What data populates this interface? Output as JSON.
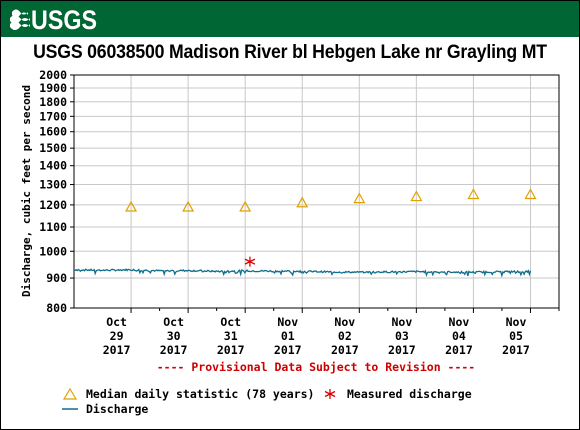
{
  "logo": {
    "text": "USGS"
  },
  "colors": {
    "banner": "#006633",
    "median": "#E0A000",
    "discharge": "#0E6E8C",
    "measured": "#DD0000",
    "provisional": "#CC0000"
  },
  "chart_data": {
    "type": "line",
    "title": "USGS 06038500 Madison River bl Hebgen Lake nr Grayling MT",
    "ylabel": "Discharge, cubic feet per second",
    "ylim": [
      800,
      2000
    ],
    "yscale": "log",
    "yticks": [
      "800",
      "900",
      "1000",
      "1100",
      "1200",
      "1300",
      "1400",
      "1500",
      "1600",
      "1700",
      "1800",
      "1900",
      "2000"
    ],
    "xlim": [
      "2017-10-28",
      "2017-11-05 12:00"
    ],
    "xticks": [
      {
        "month": "Oct",
        "day": "29",
        "year": "2017"
      },
      {
        "month": "Oct",
        "day": "30",
        "year": "2017"
      },
      {
        "month": "Oct",
        "day": "31",
        "year": "2017"
      },
      {
        "month": "Nov",
        "day": "01",
        "year": "2017"
      },
      {
        "month": "Nov",
        "day": "02",
        "year": "2017"
      },
      {
        "month": "Nov",
        "day": "03",
        "year": "2017"
      },
      {
        "month": "Nov",
        "day": "04",
        "year": "2017"
      },
      {
        "month": "Nov",
        "day": "05",
        "year": "2017"
      }
    ],
    "grid": true,
    "series": [
      {
        "name": "Discharge",
        "x": [
          "2017-10-28",
          "2017-10-28 12:00",
          "2017-10-29",
          "2017-10-29 12:00",
          "2017-10-30",
          "2017-10-30 12:00",
          "2017-10-31",
          "2017-10-31 12:00",
          "2017-11-01",
          "2017-11-01 12:00",
          "2017-11-02",
          "2017-11-02 12:00",
          "2017-11-03",
          "2017-11-03 12:00",
          "2017-11-04",
          "2017-11-04 12:00",
          "2017-11-05"
        ],
        "values": [
          930,
          928,
          930,
          926,
          927,
          924,
          926,
          925,
          924,
          922,
          921,
          922,
          923,
          922,
          921,
          923,
          924
        ]
      }
    ],
    "median_daily": {
      "name": "Median daily statistic (78 years)",
      "x": [
        "2017-10-29",
        "2017-10-30",
        "2017-10-31",
        "2017-11-01",
        "2017-11-02",
        "2017-11-03",
        "2017-11-04",
        "2017-11-05"
      ],
      "values": [
        1190,
        1190,
        1190,
        1210,
        1230,
        1240,
        1250,
        1250
      ]
    },
    "measured": {
      "name": "Measured discharge",
      "x": [
        "2017-10-31 02:00"
      ],
      "values": [
        960
      ]
    },
    "annotation": "---- Provisional Data Subject to Revision ----",
    "legend": {
      "position": "bottom-left",
      "median_label": "Median daily statistic (78 years)",
      "measured_label": "Measured discharge",
      "discharge_label": "Discharge"
    }
  }
}
